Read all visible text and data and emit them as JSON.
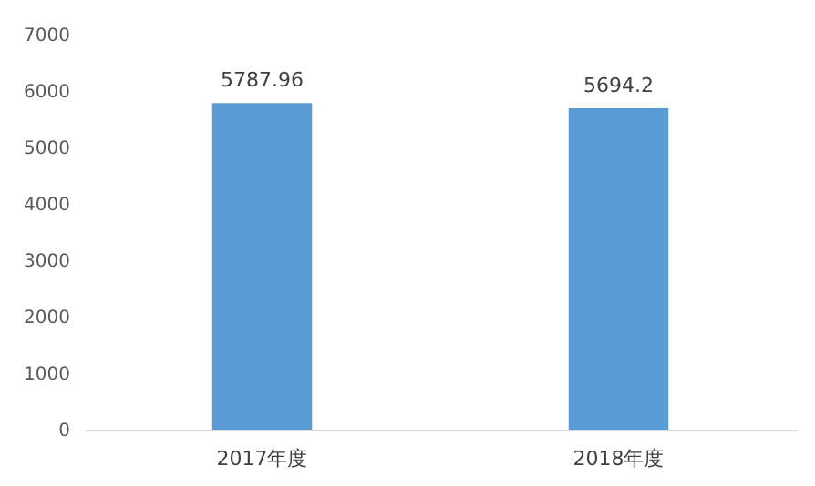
{
  "chart_data": {
    "type": "bar",
    "categories": [
      "2017年度",
      "2018年度"
    ],
    "values": [
      5787.96,
      5694.2
    ],
    "color": "#5b9bd5",
    "ylim": [
      0,
      7000
    ],
    "yticks": [
      0,
      1000,
      2000,
      3000,
      4000,
      5000,
      6000,
      7000
    ],
    "grid": false,
    "data_labels": true
  }
}
